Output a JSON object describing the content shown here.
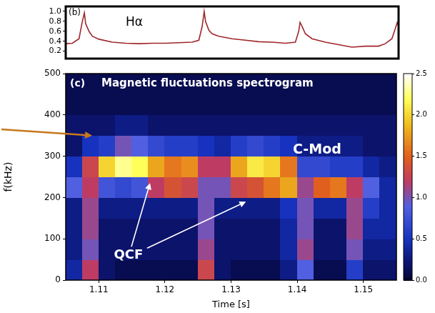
{
  "chart_data": [
    {
      "type": "line",
      "panel_label": "(b)",
      "label": "Hα",
      "color": "#a0262a",
      "grid": false,
      "tick_labels": "y",
      "x": [
        1.105,
        1.106,
        1.107,
        1.1075,
        1.1078,
        1.108,
        1.1085,
        1.109,
        1.11,
        1.112,
        1.114,
        1.116,
        1.118,
        1.12,
        1.122,
        1.124,
        1.125,
        1.1255,
        1.1258,
        1.126,
        1.1265,
        1.127,
        1.128,
        1.13,
        1.132,
        1.134,
        1.136,
        1.138,
        1.1395,
        1.14,
        1.1402,
        1.1405,
        1.141,
        1.142,
        1.144,
        1.146,
        1.148,
        1.15,
        1.152,
        1.153,
        1.154,
        1.1545,
        1.1548,
        1.155
      ],
      "values": [
        0.35,
        0.36,
        0.45,
        0.8,
        0.97,
        0.75,
        0.6,
        0.5,
        0.44,
        0.38,
        0.36,
        0.35,
        0.36,
        0.36,
        0.37,
        0.38,
        0.42,
        0.7,
        1.0,
        0.8,
        0.62,
        0.55,
        0.5,
        0.45,
        0.42,
        0.39,
        0.38,
        0.36,
        0.38,
        0.6,
        0.78,
        0.7,
        0.55,
        0.45,
        0.38,
        0.33,
        0.28,
        0.3,
        0.3,
        0.35,
        0.45,
        0.65,
        0.78,
        0.7
      ],
      "xlim": [
        1.105,
        1.155
      ],
      "ylim": [
        0.05,
        1.1
      ],
      "yticks": [
        0.2,
        0.4,
        0.6,
        0.8,
        {
          "value": 1.0,
          "label": "1.0"
        }
      ]
    },
    {
      "type": "heatmap",
      "panel_label": "(c)",
      "title": "Magnetic fluctuations spectrogram",
      "annotations": [
        "C-Mod",
        "QCF"
      ],
      "x_label": "Time [s]",
      "y_label": "f(kHz)",
      "grid": false,
      "xlim": [
        1.105,
        1.155
      ],
      "xticks": [
        1.11,
        1.12,
        1.13,
        1.14,
        1.15
      ],
      "ylim": [
        0,
        500
      ],
      "yticks": [
        0,
        100,
        200,
        300,
        400,
        500
      ],
      "time_bins": [
        1.105,
        1.1075,
        1.11,
        1.1125,
        1.115,
        1.1175,
        1.12,
        1.1225,
        1.125,
        1.1275,
        1.13,
        1.1325,
        1.135,
        1.1375,
        1.14,
        1.1425,
        1.145,
        1.1475,
        1.15,
        1.1525,
        1.155
      ],
      "freq_bins": [
        0,
        50,
        100,
        150,
        200,
        250,
        300,
        350,
        400,
        450,
        500
      ],
      "cells": [
        [
          0.4,
          0.3,
          0.3,
          0.3,
          0.9,
          0.5,
          0.2,
          0.2,
          0.1,
          0.1
        ],
        [
          1.2,
          1.0,
          1.1,
          1.1,
          1.2,
          1.3,
          0.5,
          0.2,
          0.1,
          0.1
        ],
        [
          0.2,
          0.2,
          0.2,
          0.3,
          0.8,
          2.0,
          0.6,
          0.2,
          0.1,
          0.1
        ],
        [
          0.1,
          0.2,
          0.2,
          0.3,
          0.7,
          2.3,
          1.0,
          0.3,
          0.1,
          0.1
        ],
        [
          0.1,
          0.2,
          0.2,
          0.3,
          0.8,
          2.2,
          0.9,
          0.3,
          0.1,
          0.1
        ],
        [
          0.1,
          0.2,
          0.2,
          0.3,
          1.2,
          1.8,
          0.7,
          0.2,
          0.1,
          0.1
        ],
        [
          0.1,
          0.2,
          0.2,
          0.3,
          1.4,
          1.6,
          0.6,
          0.2,
          0.1,
          0.1
        ],
        [
          0.1,
          0.2,
          0.2,
          0.3,
          1.3,
          1.7,
          0.6,
          0.2,
          0.1,
          0.1
        ],
        [
          1.3,
          1.1,
          1.0,
          1.0,
          1.0,
          1.2,
          0.5,
          0.2,
          0.1,
          0.1
        ],
        [
          0.2,
          0.2,
          0.2,
          0.3,
          1.0,
          1.2,
          0.4,
          0.2,
          0.1,
          0.1
        ],
        [
          0.1,
          0.2,
          0.2,
          0.3,
          1.3,
          1.8,
          0.6,
          0.2,
          0.1,
          0.1
        ],
        [
          0.1,
          0.2,
          0.2,
          0.3,
          1.4,
          2.1,
          0.7,
          0.2,
          0.1,
          0.1
        ],
        [
          0.1,
          0.2,
          0.2,
          0.3,
          1.6,
          2.0,
          0.6,
          0.2,
          0.1,
          0.1
        ],
        [
          0.3,
          0.4,
          0.4,
          0.5,
          1.8,
          1.6,
          0.5,
          0.2,
          0.1,
          0.1
        ],
        [
          0.9,
          1.1,
          1.0,
          1.0,
          1.1,
          0.7,
          0.3,
          0.2,
          0.1,
          0.1
        ],
        [
          0.1,
          0.2,
          0.2,
          0.4,
          1.5,
          0.7,
          0.3,
          0.2,
          0.1,
          0.1
        ],
        [
          0.1,
          0.2,
          0.2,
          0.4,
          1.6,
          0.6,
          0.3,
          0.2,
          0.1,
          0.1
        ],
        [
          0.6,
          1.0,
          1.1,
          1.1,
          1.2,
          0.6,
          0.3,
          0.2,
          0.1,
          0.1
        ],
        [
          0.2,
          0.3,
          0.4,
          0.6,
          0.9,
          0.4,
          0.2,
          0.2,
          0.1,
          0.1
        ],
        [
          0.2,
          0.3,
          0.4,
          0.4,
          0.4,
          0.3,
          0.2,
          0.2,
          0.1,
          0.1
        ]
      ],
      "colorbar": {
        "range": [
          0,
          2.5
        ],
        "ticks": [
          {
            "value": 0,
            "label": "0.0"
          },
          0.5,
          {
            "value": 1.0,
            "label": "1.0"
          },
          1.5,
          {
            "value": 2.0,
            "label": "2.0"
          },
          2.5
        ]
      }
    }
  ]
}
